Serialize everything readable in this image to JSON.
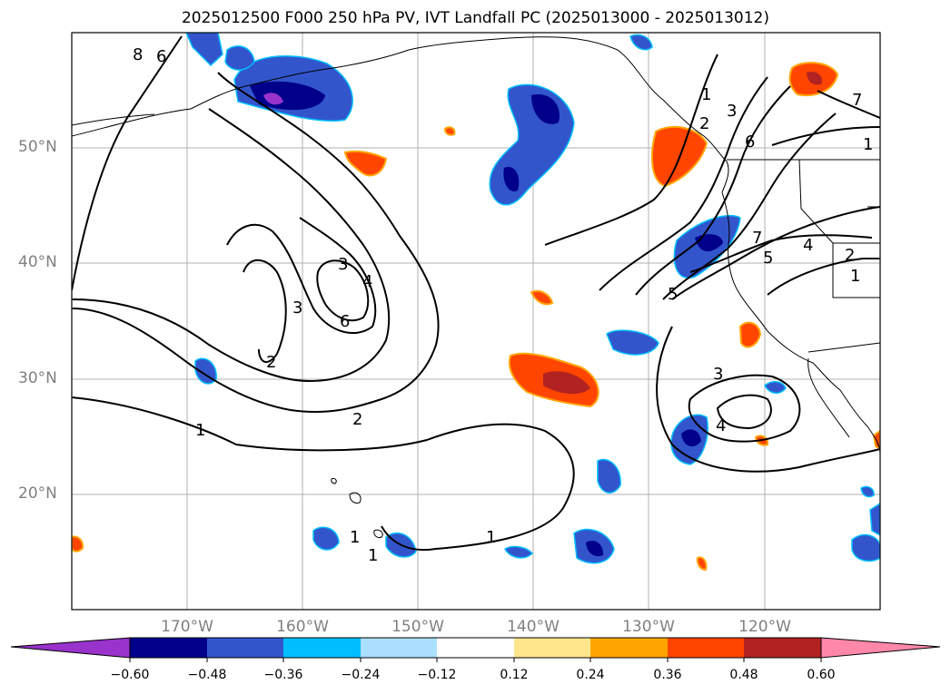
{
  "title": "2025012500 F000 250 hPa PV, IVT Landfall PC (2025013000 - 2025013012)",
  "lat_labels": [
    "50°N",
    "40°N",
    "30°N",
    "20°N"
  ],
  "lon_labels": [
    "170°W",
    "160°W",
    "150°W",
    "140°W",
    "130°W",
    "120°W"
  ],
  "colorbar": {
    "ticks": [
      "−0.60",
      "−0.48",
      "−0.36",
      "−0.24",
      "−0.12",
      "0.12",
      "0.24",
      "0.36",
      "0.48",
      "0.60"
    ],
    "colors": [
      "#9933cc",
      "#00008b",
      "#3355cc",
      "#00bfff",
      "#aadfff",
      "#ffffff",
      "#ffe68c",
      "#ffa500",
      "#ff4500",
      "#b22222",
      "#ff88aa"
    ]
  },
  "contour_labels": {
    "c1": "1",
    "c2": "2",
    "c3": "3",
    "c4": "4",
    "c5": "5",
    "c6": "6",
    "c7": "7",
    "c8": "8"
  }
}
